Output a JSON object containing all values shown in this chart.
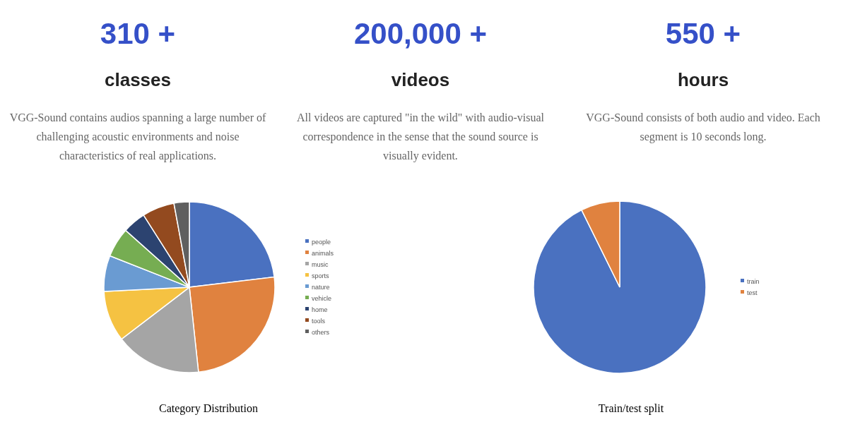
{
  "chart_data": [
    {
      "type": "other",
      "title": "310 +",
      "subtitle": "classes",
      "annotations": [
        "VGG-Sound contains audios spanning a large number of challenging acoustic environments and noise characteristics of real applications."
      ]
    },
    {
      "type": "other",
      "title": "200,000 +",
      "subtitle": "videos",
      "annotations": [
        "All videos are captured \"in the wild\" with audio-visual correspondence in the sense that the sound source is visually evident."
      ]
    },
    {
      "type": "other",
      "title": "550 +",
      "subtitle": "hours",
      "annotations": [
        "VGG-Sound consists of both audio and video. Each segment is 10 seconds long."
      ]
    },
    {
      "type": "pie",
      "title": "Category Distribution",
      "legend": "right",
      "categories": [
        "people",
        "animals",
        "music",
        "sports",
        "nature",
        "vehicle",
        "home",
        "tools",
        "others"
      ],
      "values": [
        23.1,
        25.2,
        16.3,
        9.6,
        6.8,
        5.6,
        4.4,
        6.1,
        2.9
      ],
      "colors": [
        "#4a71c0",
        "#e0823f",
        "#a5a5a5",
        "#f5c242",
        "#6a9bd2",
        "#76ad52",
        "#2c4370",
        "#934a1f",
        "#5f5f5f"
      ]
    },
    {
      "type": "pie",
      "title": "Train/test split",
      "legend": "right",
      "categories": [
        "train",
        "test"
      ],
      "values": [
        92.7,
        7.3
      ],
      "colors": [
        "#4a71c0",
        "#e0823f"
      ]
    }
  ]
}
